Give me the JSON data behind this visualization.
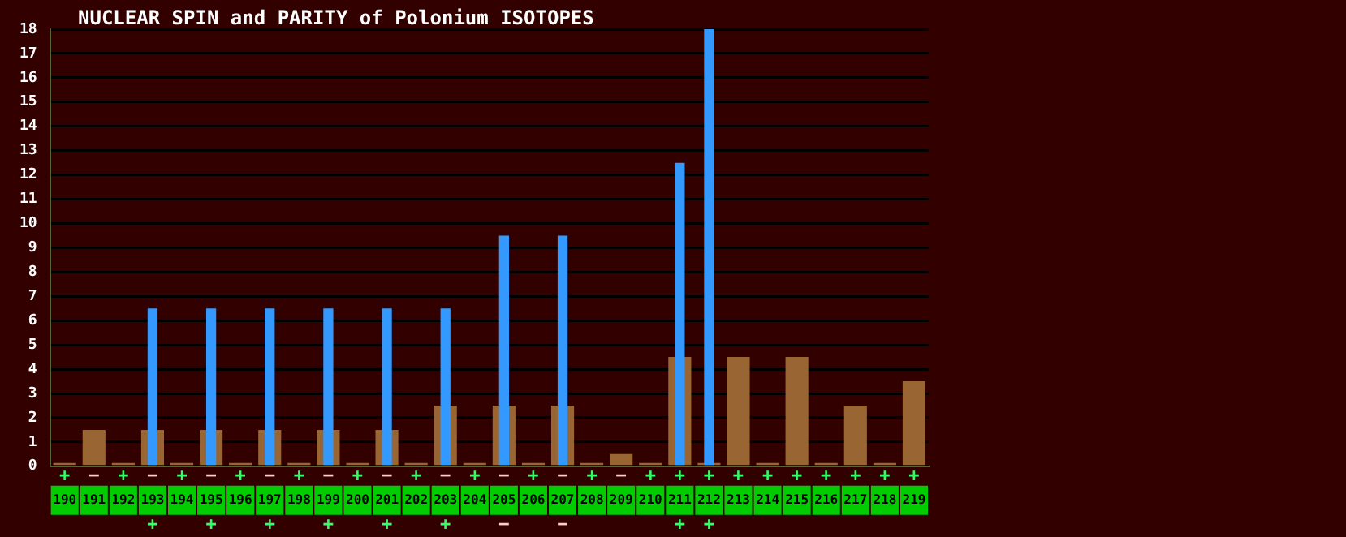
{
  "chart_data": {
    "type": "bar",
    "title": "NUCLEAR SPIN and PARITY of Polonium ISOTOPES",
    "categories": [
      "190",
      "191",
      "192",
      "193",
      "194",
      "195",
      "196",
      "197",
      "198",
      "199",
      "200",
      "201",
      "202",
      "203",
      "204",
      "205",
      "206",
      "207",
      "208",
      "209",
      "210",
      "211",
      "212",
      "213",
      "214",
      "215",
      "216",
      "217",
      "218",
      "219"
    ],
    "series": [
      {
        "color": "#996633",
        "values": [
          0,
          1.5,
          0,
          1.5,
          0,
          1.5,
          0,
          1.5,
          0,
          1.5,
          0,
          1.5,
          0,
          2.5,
          0,
          2.5,
          0,
          2.5,
          0,
          0.5,
          0,
          4.5,
          0,
          4.5,
          0,
          4.5,
          0,
          2.5,
          0,
          3.5
        ],
        "value_labels": [
          "+",
          "−",
          "+",
          "−",
          "+",
          "−",
          "+",
          "−",
          "+",
          "−",
          "+",
          "−",
          "+",
          "−",
          "+",
          "−",
          "+",
          "−",
          "+",
          "−",
          "+",
          "+",
          "+",
          "+",
          "+",
          "+",
          "+",
          "+",
          "+",
          "+"
        ]
      },
      {
        "color": "#3399ff",
        "values": [
          null,
          null,
          null,
          6.5,
          null,
          6.5,
          null,
          6.5,
          null,
          6.5,
          null,
          6.5,
          null,
          6.5,
          null,
          9.5,
          null,
          9.5,
          null,
          null,
          null,
          12.5,
          18,
          null,
          null,
          null,
          null,
          null,
          null,
          null
        ],
        "value_labels": [
          null,
          null,
          null,
          "+",
          null,
          "+",
          null,
          "+",
          null,
          "+",
          null,
          "+",
          null,
          "+",
          null,
          "−",
          null,
          "−",
          null,
          null,
          null,
          "+",
          "+",
          null,
          null,
          null,
          null,
          null,
          null,
          null
        ]
      }
    ],
    "ylim": [
      0,
      18
    ],
    "yticks": [
      0,
      1,
      2,
      3,
      4,
      5,
      6,
      7,
      8,
      9,
      10,
      11,
      12,
      13,
      14,
      15,
      16,
      17,
      18
    ],
    "grid": "y"
  }
}
